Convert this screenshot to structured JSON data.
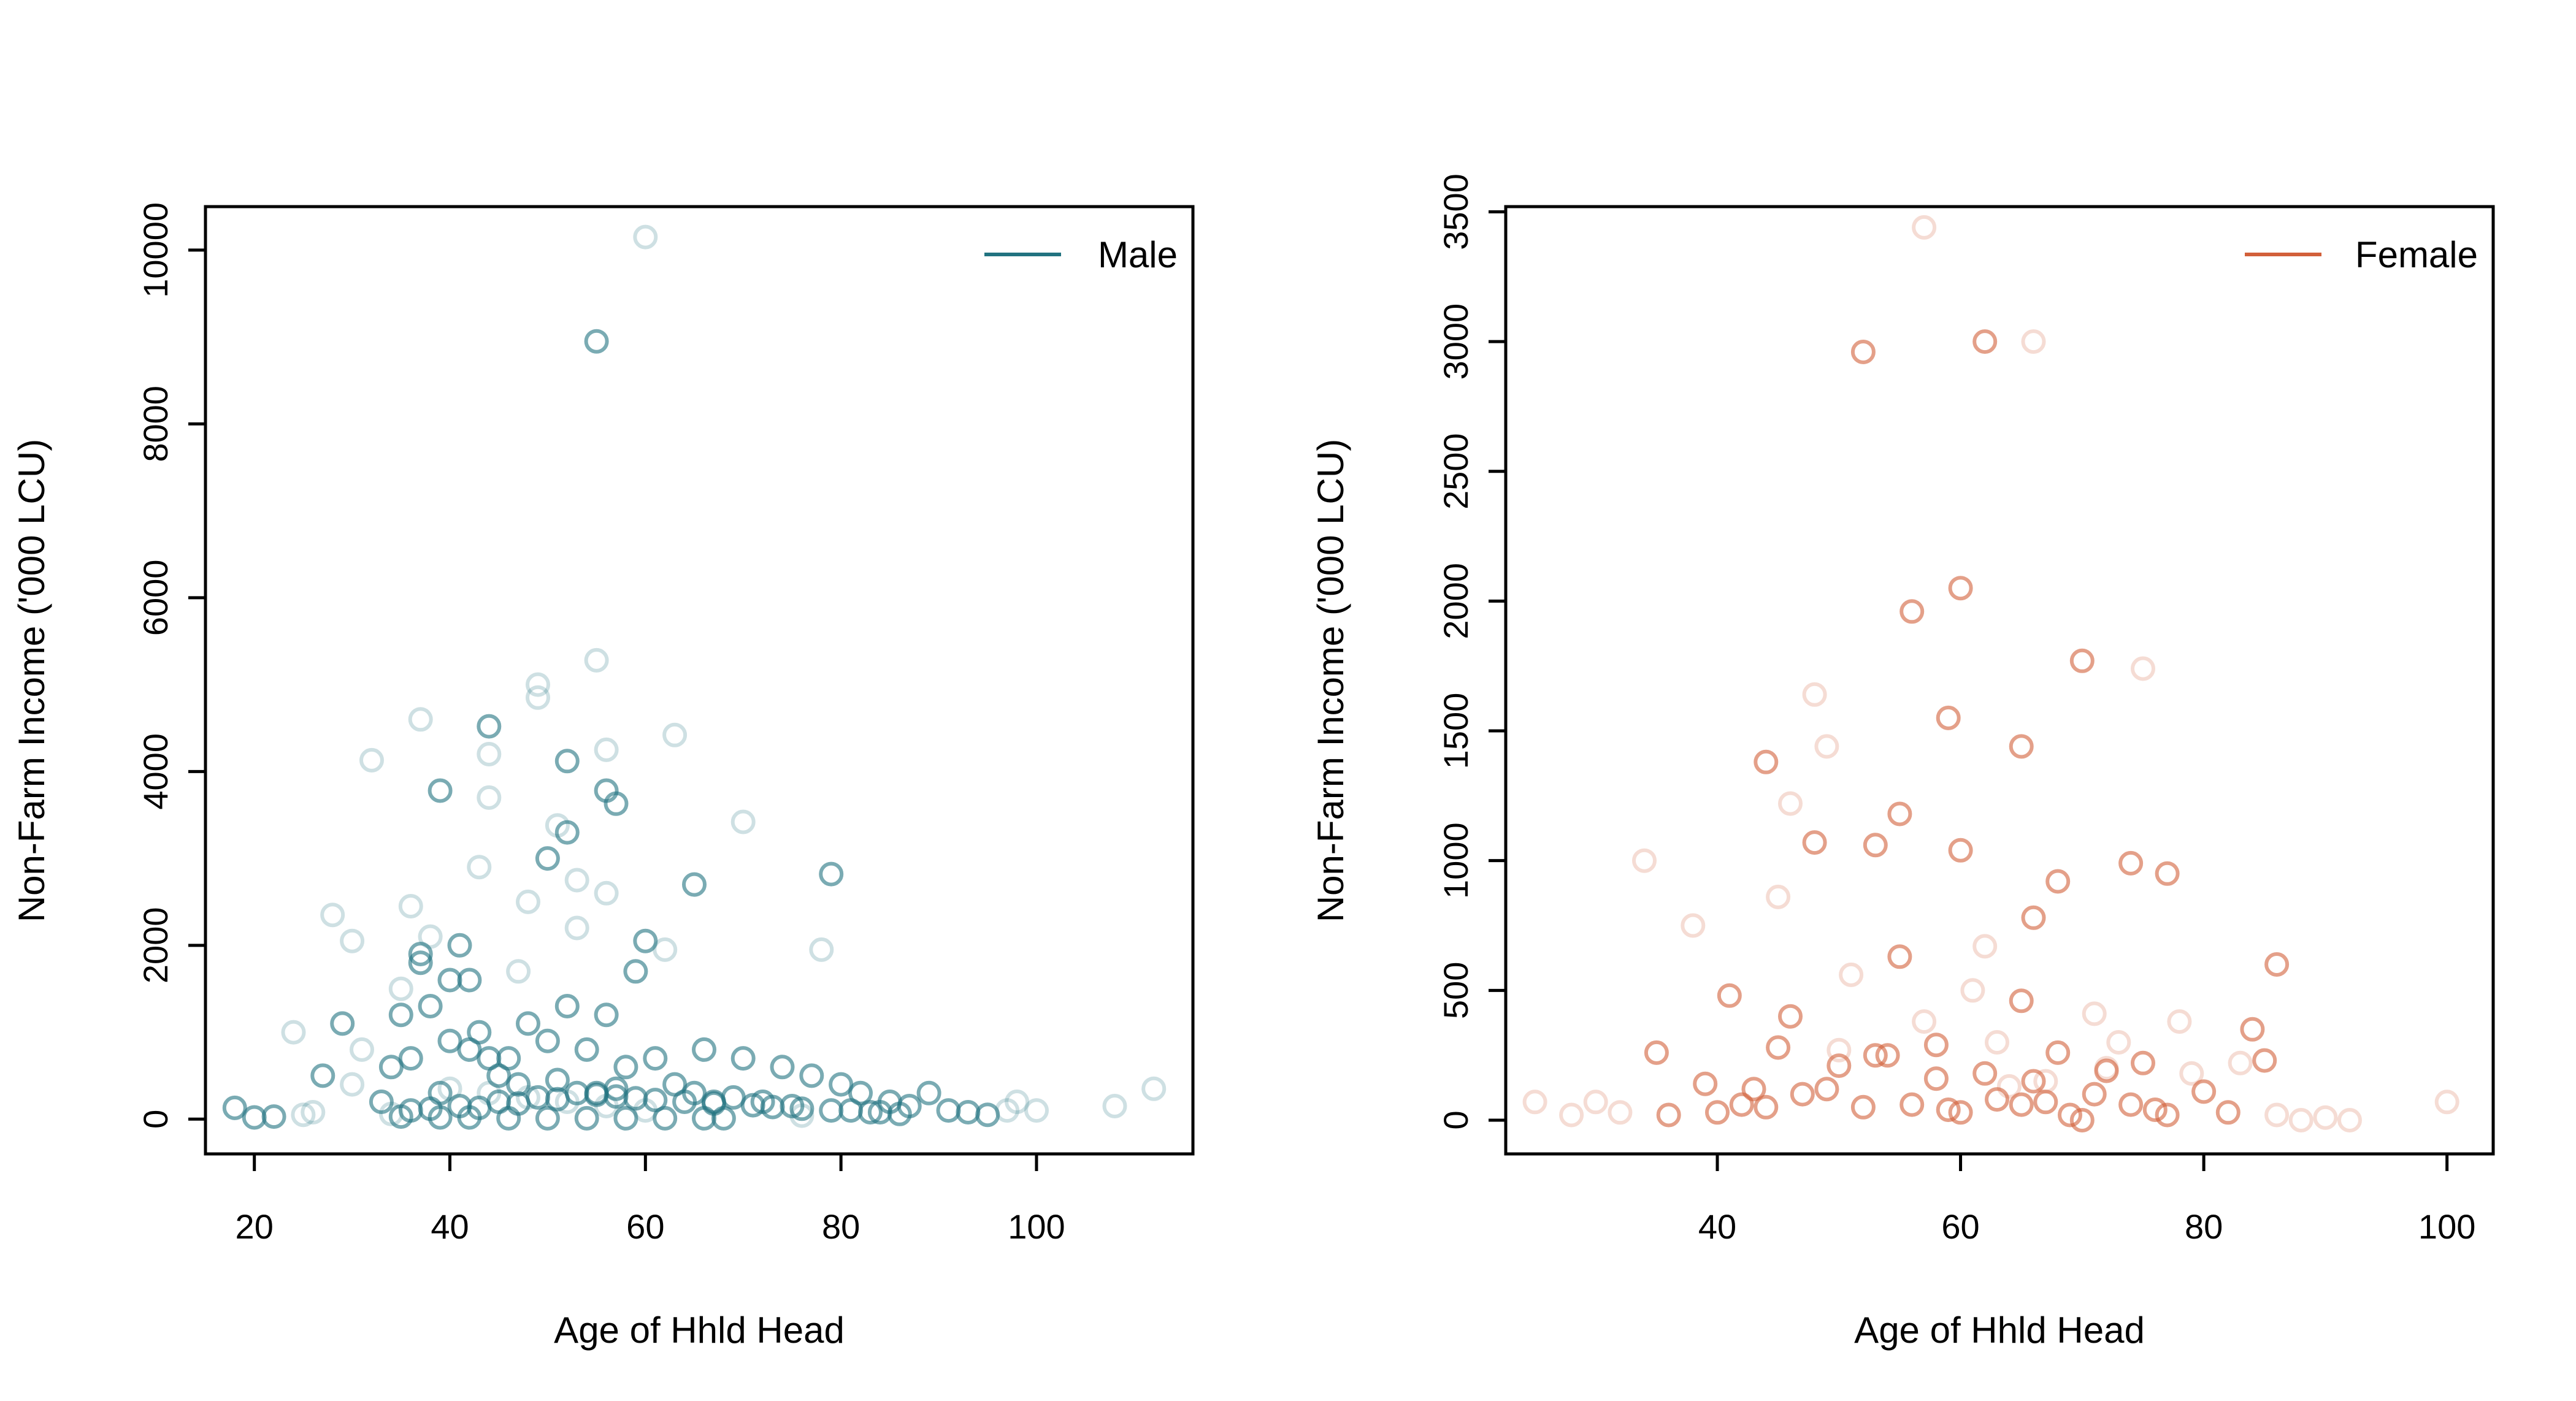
{
  "chart_data": [
    {
      "type": "scatter",
      "xlabel": "Age of Hhld Head",
      "ylabel": "Non-Farm Income ('000 LCU)",
      "xlim": [
        15,
        116
      ],
      "ylim": [
        -400,
        10500
      ],
      "x_ticks": [
        "20",
        "40",
        "60",
        "80",
        "100"
      ],
      "y_ticks": [
        "0",
        "2000",
        "4000",
        "6000",
        "8000",
        "10000"
      ],
      "legend": {
        "position": "top-right",
        "label": "Male",
        "color": "#217380"
      },
      "color": "#217380",
      "marker": "open-circle",
      "series": [
        {
          "name": "Male",
          "x": [
            60,
            55,
            55,
            49,
            49,
            56,
            44,
            37,
            63,
            44,
            32,
            52,
            39,
            56,
            57,
            44,
            70,
            52,
            51,
            50,
            79,
            53,
            43,
            28,
            36,
            48,
            56,
            65,
            38,
            37,
            53,
            62,
            41,
            60,
            30,
            78,
            37,
            47,
            35,
            35,
            40,
            38,
            42,
            43,
            48,
            52,
            56,
            59,
            44,
            27,
            24,
            29,
            31,
            34,
            36,
            40,
            42,
            46,
            50,
            54,
            58,
            61,
            66,
            70,
            74,
            77,
            80,
            82,
            85,
            87,
            89,
            91,
            93,
            95,
            97,
            98,
            100,
            108,
            112,
            18,
            20,
            22,
            25,
            33,
            39,
            45,
            47,
            51,
            55,
            57,
            63,
            65,
            67,
            69,
            72,
            75,
            81,
            84,
            86,
            36,
            38,
            41,
            43,
            45,
            47,
            49,
            51,
            53,
            55,
            57,
            59,
            61,
            64,
            67,
            71,
            73,
            76,
            79,
            83,
            35,
            39,
            42,
            46,
            50,
            54,
            58,
            62,
            66,
            68,
            30,
            40,
            44,
            48,
            52,
            56,
            60,
            26,
            34,
            76
          ],
          "y": [
            10150,
            8950,
            5280,
            5000,
            4850,
            4250,
            4520,
            4600,
            4420,
            4200,
            4130,
            4120,
            3780,
            3780,
            3630,
            3700,
            3420,
            3300,
            3380,
            3000,
            2820,
            2750,
            2900,
            2350,
            2450,
            2500,
            2600,
            2700,
            2100,
            1900,
            2200,
            1950,
            2000,
            2050,
            2050,
            1950,
            1800,
            1700,
            1500,
            1200,
            1600,
            1300,
            1600,
            1000,
            1100,
            1300,
            1200,
            1700,
            700,
            500,
            1000,
            1100,
            800,
            600,
            700,
            900,
            800,
            700,
            900,
            800,
            600,
            700,
            800,
            700,
            600,
            500,
            400,
            300,
            200,
            150,
            300,
            100,
            80,
            50,
            100,
            200,
            100,
            150,
            350,
            130,
            20,
            30,
            50,
            200,
            300,
            500,
            400,
            450,
            300,
            350,
            400,
            300,
            200,
            250,
            200,
            150,
            100,
            80,
            60,
            100,
            120,
            150,
            130,
            200,
            180,
            250,
            230,
            300,
            280,
            260,
            240,
            220,
            200,
            180,
            160,
            140,
            120,
            100,
            80,
            30,
            20,
            20,
            10,
            10,
            10,
            10,
            10,
            10,
            10,
            400,
            350,
            300,
            250,
            200,
            150,
            100,
            80,
            60,
            40
          ],
          "emphasis": [
            0,
            1,
            0,
            0,
            0,
            0,
            1,
            0,
            0,
            0,
            0,
            1,
            1,
            1,
            1,
            0,
            0,
            1,
            0,
            1,
            1,
            0,
            0,
            0,
            0,
            0,
            0,
            1,
            0,
            1,
            0,
            0,
            1,
            1,
            0,
            0,
            1,
            0,
            0,
            1,
            1,
            1,
            1,
            1,
            1,
            1,
            1,
            1,
            1,
            1,
            0,
            1,
            0,
            1,
            1,
            1,
            1,
            1,
            1,
            1,
            1,
            1,
            1,
            1,
            1,
            1,
            1,
            1,
            1,
            1,
            1,
            1,
            1,
            1,
            0,
            0,
            0,
            0,
            0,
            1,
            1,
            1,
            0,
            1,
            1,
            1,
            1,
            1,
            1,
            1,
            1,
            1,
            1,
            1,
            1,
            1,
            1,
            1,
            1,
            1,
            1,
            1,
            1,
            1,
            1,
            1,
            1,
            1,
            1,
            1,
            1,
            1,
            1,
            1,
            1,
            1,
            1,
            1,
            1,
            1,
            1,
            1,
            1,
            1,
            1,
            1,
            1,
            1,
            1,
            0,
            0,
            0,
            0,
            0,
            0,
            0,
            0,
            0,
            0
          ]
        }
      ]
    },
    {
      "type": "scatter",
      "xlabel": "Age of Hhld Head",
      "ylabel": "Non-Farm Income ('000 LCU)",
      "xlim": [
        22.6,
        103.8
      ],
      "ylim": [
        -130,
        3520
      ],
      "x_ticks": [
        "40",
        "60",
        "80",
        "100"
      ],
      "y_ticks": [
        "0",
        "500",
        "1000",
        "1500",
        "2000",
        "2500",
        "3000",
        "3500"
      ],
      "legend": {
        "position": "top-right",
        "label": "Female",
        "color": "#D2603A"
      },
      "color": "#D2603A",
      "marker": "open-circle",
      "series": [
        {
          "name": "Female",
          "x": [
            57,
            52,
            62,
            66,
            60,
            56,
            70,
            75,
            59,
            65,
            48,
            44,
            49,
            45,
            55,
            46,
            34,
            53,
            48,
            60,
            68,
            74,
            77,
            38,
            66,
            62,
            41,
            55,
            86,
            78,
            71,
            65,
            46,
            51,
            57,
            61,
            63,
            73,
            84,
            85,
            83,
            79,
            72,
            67,
            64,
            58,
            54,
            50,
            43,
            39,
            35,
            30,
            25,
            28,
            32,
            36,
            40,
            42,
            44,
            47,
            49,
            52,
            56,
            59,
            60,
            63,
            65,
            67,
            69,
            70,
            71,
            74,
            76,
            77,
            80,
            82,
            86,
            88,
            90,
            92,
            100,
            45,
            50,
            53,
            58,
            62,
            66,
            68,
            72,
            75
          ],
          "y": [
            3440,
            2960,
            3000,
            3000,
            2050,
            1960,
            1770,
            1740,
            1550,
            1440,
            1640,
            1380,
            1440,
            860,
            1180,
            1220,
            1000,
            1060,
            1070,
            1040,
            920,
            990,
            950,
            750,
            780,
            670,
            480,
            630,
            600,
            380,
            410,
            460,
            400,
            560,
            380,
            500,
            300,
            300,
            350,
            230,
            220,
            180,
            200,
            150,
            130,
            160,
            250,
            270,
            120,
            140,
            260,
            70,
            70,
            20,
            30,
            20,
            30,
            60,
            50,
            100,
            120,
            50,
            60,
            40,
            30,
            80,
            60,
            70,
            20,
            0,
            100,
            60,
            40,
            20,
            110,
            30,
            20,
            0,
            10,
            0,
            70,
            280,
            210,
            250,
            290,
            180,
            150,
            260,
            190,
            220
          ],
          "emphasis": [
            0,
            1,
            1,
            0,
            1,
            1,
            1,
            0,
            1,
            1,
            0,
            1,
            0,
            0,
            1,
            0,
            0,
            1,
            1,
            1,
            1,
            1,
            1,
            0,
            1,
            0,
            1,
            1,
            1,
            0,
            0,
            1,
            1,
            0,
            0,
            0,
            0,
            0,
            1,
            1,
            0,
            0,
            0,
            0,
            0,
            1,
            1,
            0,
            1,
            1,
            1,
            0,
            0,
            0,
            0,
            1,
            1,
            1,
            1,
            1,
            1,
            1,
            1,
            1,
            1,
            1,
            1,
            1,
            1,
            1,
            1,
            1,
            1,
            1,
            1,
            1,
            0,
            0,
            0,
            0,
            0,
            1,
            1,
            1,
            1,
            1,
            1,
            1,
            1,
            1
          ]
        }
      ]
    }
  ]
}
